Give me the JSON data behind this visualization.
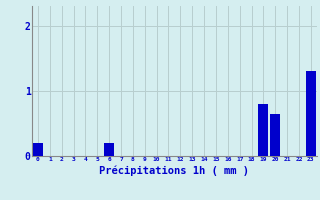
{
  "hours": [
    0,
    1,
    2,
    3,
    4,
    5,
    6,
    7,
    8,
    9,
    10,
    11,
    12,
    13,
    14,
    15,
    16,
    17,
    18,
    19,
    20,
    21,
    22,
    23
  ],
  "values": [
    0.2,
    0,
    0,
    0,
    0,
    0,
    0.2,
    0,
    0,
    0,
    0,
    0,
    0,
    0,
    0,
    0,
    0,
    0,
    0,
    0.8,
    0.65,
    0,
    0,
    1.3
  ],
  "bar_color": "#0000cc",
  "background_color": "#d5eef0",
  "grid_color": "#b8cece",
  "xlabel": "Précipitations 1h ( mm )",
  "xlabel_color": "#0000cc",
  "tick_color": "#0000cc",
  "axis_color": "#888888",
  "ylabel_ticks": [
    0,
    1,
    2
  ],
  "ylim": [
    0,
    2.3
  ],
  "xlim": [
    -0.5,
    23.5
  ]
}
